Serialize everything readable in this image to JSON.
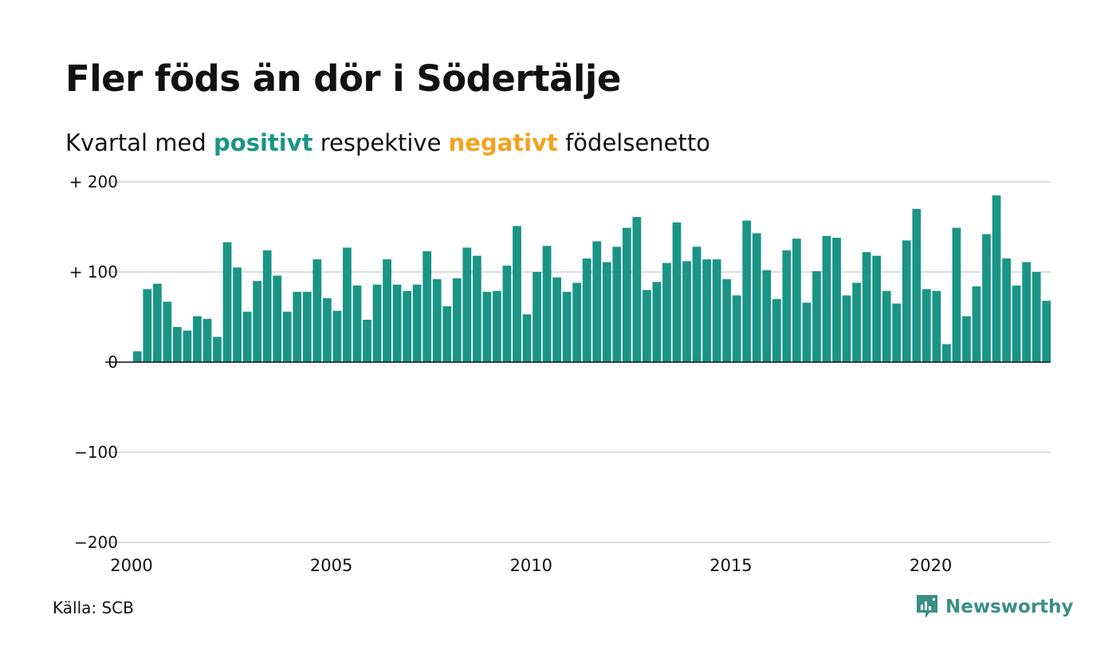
{
  "title": "Fler föds än dör i Södertälje",
  "subtitle": {
    "prefix": "Kvartal med",
    "positive": "positivt",
    "middle": "respektive",
    "negative": "negativt",
    "suffix": "födelsenetto"
  },
  "source": "Källa: SCB",
  "brand": "Newsworthy",
  "colors": {
    "positive": "#1a9585",
    "negative": "#f4a21e",
    "grid": "#dddddd",
    "brand": "#3b8f83"
  },
  "chart_data": {
    "type": "bar",
    "x_start": 2000.0,
    "x_step": 0.25,
    "xlim": [
      2000,
      2023
    ],
    "ylim": [
      -200,
      200
    ],
    "yticks": [
      200,
      100,
      0,
      -100,
      -200
    ],
    "ytick_labels": [
      "+ 200",
      "+ 100",
      "0",
      "−100",
      "−200"
    ],
    "xticks": [
      2000,
      2005,
      2010,
      2015,
      2020
    ],
    "xtick_labels": [
      "2000",
      "2005",
      "2010",
      "2015",
      "2020"
    ],
    "grid": true,
    "values": [
      12,
      81,
      87,
      67,
      39,
      35,
      51,
      48,
      28,
      133,
      105,
      56,
      90,
      124,
      96,
      56,
      78,
      78,
      114,
      71,
      57,
      127,
      85,
      47,
      86,
      114,
      86,
      79,
      86,
      123,
      92,
      62,
      93,
      127,
      118,
      78,
      79,
      107,
      151,
      53,
      100,
      129,
      94,
      78,
      88,
      115,
      134,
      111,
      128,
      149,
      161,
      80,
      89,
      110,
      155,
      112,
      128,
      114,
      114,
      92,
      74,
      157,
      143,
      102,
      70,
      124,
      137,
      66,
      101,
      140,
      138,
      74,
      88,
      122,
      118,
      79,
      65,
      135,
      170,
      81,
      79,
      20,
      149,
      51,
      84,
      142,
      185,
      115,
      85,
      111,
      100,
      68
    ]
  }
}
